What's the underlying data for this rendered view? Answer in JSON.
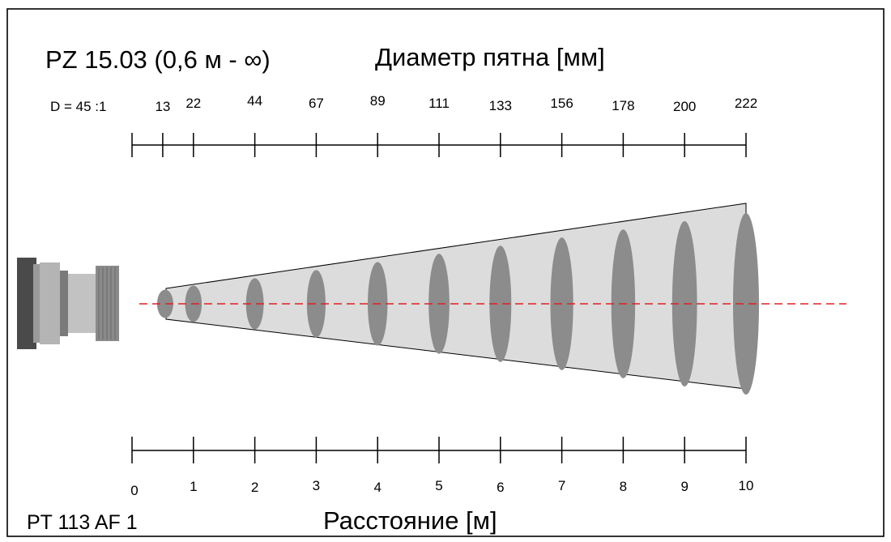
{
  "title": {
    "model": "PZ 15.03 (0,6 м - ∞)",
    "spot_heading": "Диаметр пятна [мм]",
    "ratio": "D = 45 :1"
  },
  "footer": {
    "device": "PT 113 AF 1",
    "distance_heading": "Расстояние [м]"
  },
  "spot_diameters_mm": [
    {
      "distance_m": 0.5,
      "label": "13"
    },
    {
      "distance_m": 1,
      "label": "22"
    },
    {
      "distance_m": 2,
      "label": "44"
    },
    {
      "distance_m": 3,
      "label": "67"
    },
    {
      "distance_m": 4,
      "label": "89"
    },
    {
      "distance_m": 5,
      "label": "111"
    },
    {
      "distance_m": 6,
      "label": "133"
    },
    {
      "distance_m": 7,
      "label": "156"
    },
    {
      "distance_m": 8,
      "label": "178"
    },
    {
      "distance_m": 9,
      "label": "200"
    },
    {
      "distance_m": 10,
      "label": "222"
    }
  ],
  "distance_ticks_m": [
    "0",
    "1",
    "2",
    "3",
    "4",
    "5",
    "6",
    "7",
    "8",
    "9",
    "10"
  ],
  "colors": {
    "cone_fill": "#dcdcdc",
    "spot_fill": "#8c8c8c",
    "axis_line": "#e02020",
    "sensor_body": "#a8a8a8",
    "sensor_dark": "#505050"
  }
}
